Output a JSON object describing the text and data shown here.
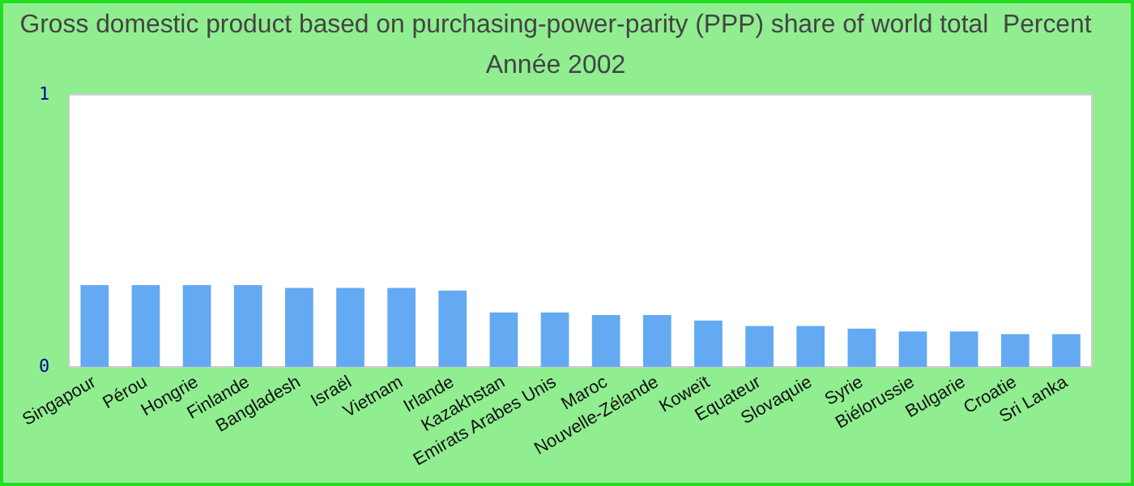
{
  "chart_data": {
    "type": "bar",
    "title": "Gross domestic product based on purchasing-power-parity (PPP) share of world total  Percent",
    "subtitle": "Année 2002",
    "categories": [
      "Singapour",
      "Pérou",
      "Hongrie",
      "Finlande",
      "Bangladesh",
      "Israël",
      "Vietnam",
      "Irlande",
      "Kazakhstan",
      "Emirats Arabes Unis",
      "Maroc",
      "Nouvelle-Zélande",
      "Koweït",
      "Equateur",
      "Slovaquie",
      "Syrie",
      "Biélorussie",
      "Bulgarie",
      "Croatie",
      "Sri Lanka"
    ],
    "values": [
      0.3,
      0.3,
      0.3,
      0.3,
      0.29,
      0.29,
      0.29,
      0.28,
      0.2,
      0.2,
      0.19,
      0.19,
      0.17,
      0.15,
      0.15,
      0.14,
      0.13,
      0.13,
      0.12,
      0.12
    ],
    "color": "#63aaf2",
    "ylim": [
      0,
      1
    ],
    "yticks": [
      0,
      1
    ],
    "grid": false,
    "legend": false
  }
}
